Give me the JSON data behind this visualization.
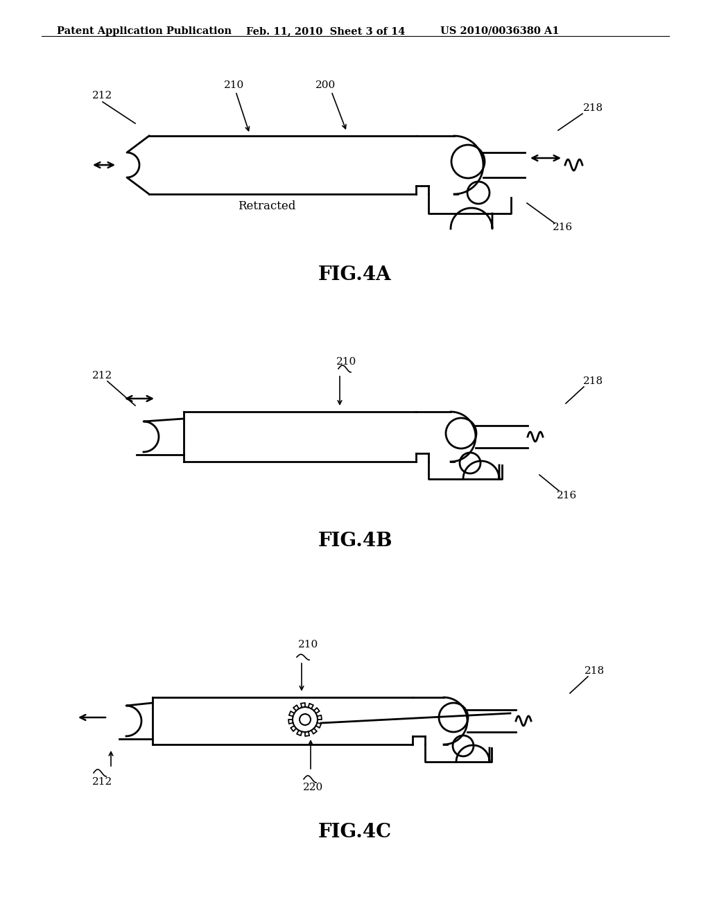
{
  "bg_color": "#ffffff",
  "line_color": "#000000",
  "header_left": "Patent Application Publication",
  "header_mid": "Feb. 11, 2010  Sheet 3 of 14",
  "header_right": "US 2010/0036380 A1",
  "fig4a_label": "FIG.4A",
  "fig4b_label": "FIG.4B",
  "fig4c_label": "FIG.4C",
  "retracted_label": "Retracted"
}
